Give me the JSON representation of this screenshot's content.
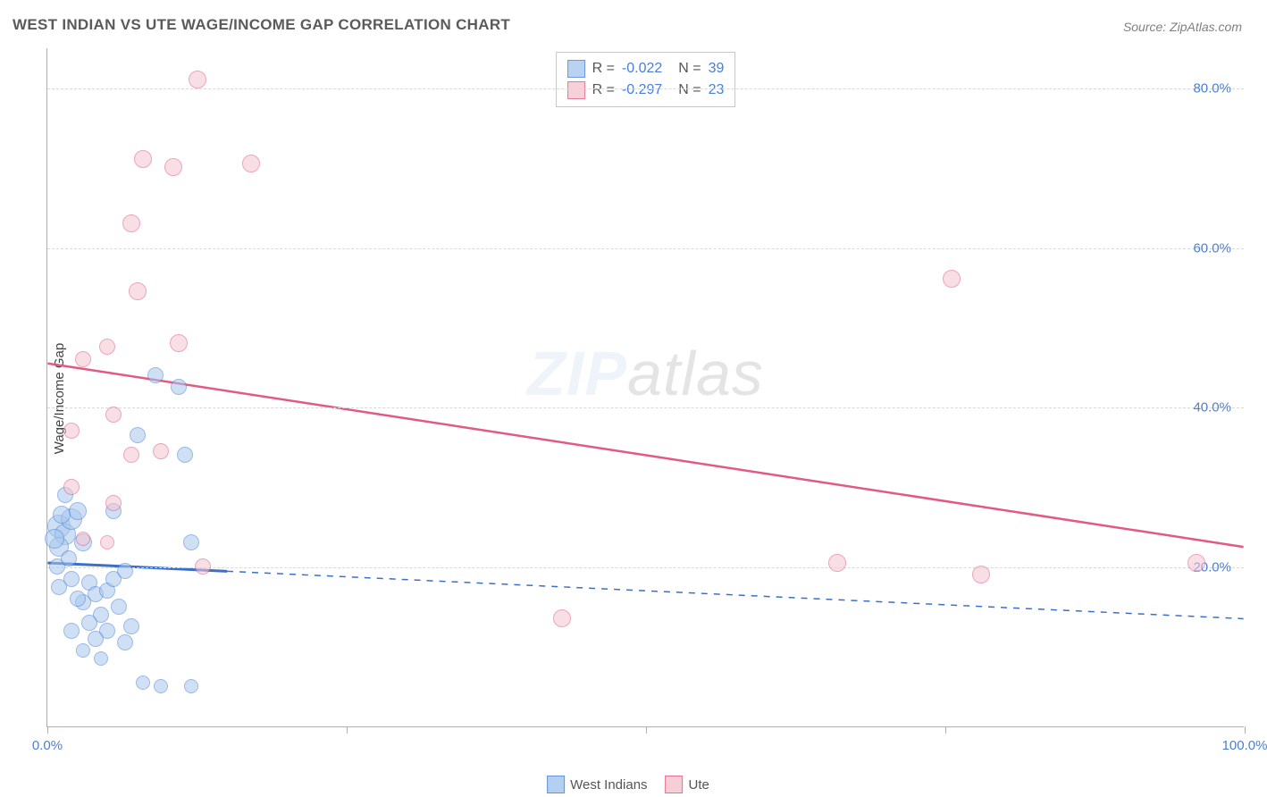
{
  "title": "WEST INDIAN VS UTE WAGE/INCOME GAP CORRELATION CHART",
  "source": "Source: ZipAtlas.com",
  "ylabel": "Wage/Income Gap",
  "watermark_a": "ZIP",
  "watermark_b": "atlas",
  "chart": {
    "type": "scatter",
    "xlim": [
      0,
      100
    ],
    "ylim": [
      0,
      85
    ],
    "yticks": [
      20,
      40,
      60,
      80
    ],
    "ytick_labels": [
      "20.0%",
      "40.0%",
      "60.0%",
      "80.0%"
    ],
    "xticks": [
      0,
      25,
      50,
      75,
      100
    ],
    "x_first_label": "0.0%",
    "x_last_label": "100.0%",
    "grid_color": "#d8d8d8",
    "background_color": "#ffffff",
    "series": [
      {
        "name": "West Indians",
        "fill": "#a8c8ee",
        "stroke": "#4a7fd6",
        "fill_opacity": 0.55,
        "line_color": "#3d6fc9",
        "line_width": 3,
        "trend": {
          "x1": 0,
          "y1": 20.5,
          "x2": 100,
          "y2": 13.5,
          "solid_until_x": 15
        },
        "R": "-0.022",
        "N": "39",
        "points": [
          {
            "x": 1.0,
            "y": 25.0,
            "r": 13
          },
          {
            "x": 1.5,
            "y": 24.0,
            "r": 12
          },
          {
            "x": 2.0,
            "y": 26.0,
            "r": 12
          },
          {
            "x": 1.0,
            "y": 22.5,
            "r": 11
          },
          {
            "x": 2.5,
            "y": 27.0,
            "r": 10
          },
          {
            "x": 3.0,
            "y": 23.0,
            "r": 10
          },
          {
            "x": 1.5,
            "y": 29.0,
            "r": 9
          },
          {
            "x": 0.8,
            "y": 20.0,
            "r": 9
          },
          {
            "x": 2.0,
            "y": 18.5,
            "r": 9
          },
          {
            "x": 3.5,
            "y": 18.0,
            "r": 9
          },
          {
            "x": 4.0,
            "y": 16.5,
            "r": 9
          },
          {
            "x": 5.0,
            "y": 17.0,
            "r": 9
          },
          {
            "x": 3.0,
            "y": 15.5,
            "r": 9
          },
          {
            "x": 4.5,
            "y": 14.0,
            "r": 9
          },
          {
            "x": 5.5,
            "y": 18.5,
            "r": 9
          },
          {
            "x": 6.0,
            "y": 15.0,
            "r": 9
          },
          {
            "x": 3.5,
            "y": 13.0,
            "r": 9
          },
          {
            "x": 5.0,
            "y": 12.0,
            "r": 9
          },
          {
            "x": 6.5,
            "y": 10.5,
            "r": 9
          },
          {
            "x": 4.0,
            "y": 11.0,
            "r": 9
          },
          {
            "x": 7.0,
            "y": 12.5,
            "r": 9
          },
          {
            "x": 2.5,
            "y": 16.0,
            "r": 9
          },
          {
            "x": 5.5,
            "y": 27.0,
            "r": 9
          },
          {
            "x": 7.5,
            "y": 36.5,
            "r": 9
          },
          {
            "x": 9.0,
            "y": 44.0,
            "r": 9
          },
          {
            "x": 11.0,
            "y": 42.5,
            "r": 9
          },
          {
            "x": 12.0,
            "y": 23.0,
            "r": 9
          },
          {
            "x": 11.5,
            "y": 34.0,
            "r": 9
          },
          {
            "x": 2.0,
            "y": 12.0,
            "r": 9
          },
          {
            "x": 6.5,
            "y": 19.5,
            "r": 9
          },
          {
            "x": 8.0,
            "y": 5.5,
            "r": 8
          },
          {
            "x": 9.5,
            "y": 5.0,
            "r": 8
          },
          {
            "x": 12.0,
            "y": 5.0,
            "r": 8
          },
          {
            "x": 3.0,
            "y": 9.5,
            "r": 8
          },
          {
            "x": 4.5,
            "y": 8.5,
            "r": 8
          },
          {
            "x": 1.0,
            "y": 17.5,
            "r": 9
          },
          {
            "x": 1.8,
            "y": 21.0,
            "r": 9
          },
          {
            "x": 0.6,
            "y": 23.5,
            "r": 11
          },
          {
            "x": 1.2,
            "y": 26.5,
            "r": 10
          }
        ]
      },
      {
        "name": "Ute",
        "fill": "#f4c6d2",
        "stroke": "#e15a84",
        "fill_opacity": 0.55,
        "line_color": "#e15a84",
        "line_width": 2.5,
        "trend": {
          "x1": 0,
          "y1": 45.5,
          "x2": 100,
          "y2": 22.5,
          "solid_until_x": 100
        },
        "R": "-0.297",
        "N": "23",
        "points": [
          {
            "x": 12.5,
            "y": 81.0,
            "r": 10
          },
          {
            "x": 8.0,
            "y": 71.0,
            "r": 10
          },
          {
            "x": 10.5,
            "y": 70.0,
            "r": 10
          },
          {
            "x": 17.0,
            "y": 70.5,
            "r": 10
          },
          {
            "x": 7.0,
            "y": 63.0,
            "r": 10
          },
          {
            "x": 7.5,
            "y": 54.5,
            "r": 10
          },
          {
            "x": 11.0,
            "y": 48.0,
            "r": 10
          },
          {
            "x": 5.0,
            "y": 47.5,
            "r": 9
          },
          {
            "x": 3.0,
            "y": 46.0,
            "r": 9
          },
          {
            "x": 5.5,
            "y": 39.0,
            "r": 9
          },
          {
            "x": 2.0,
            "y": 37.0,
            "r": 9
          },
          {
            "x": 7.0,
            "y": 34.0,
            "r": 9
          },
          {
            "x": 9.5,
            "y": 34.5,
            "r": 9
          },
          {
            "x": 2.0,
            "y": 30.0,
            "r": 9
          },
          {
            "x": 5.5,
            "y": 28.0,
            "r": 9
          },
          {
            "x": 5.0,
            "y": 23.0,
            "r": 8
          },
          {
            "x": 13.0,
            "y": 20.0,
            "r": 9
          },
          {
            "x": 3.0,
            "y": 23.5,
            "r": 8
          },
          {
            "x": 43.0,
            "y": 13.5,
            "r": 10
          },
          {
            "x": 66.0,
            "y": 20.5,
            "r": 10
          },
          {
            "x": 75.5,
            "y": 56.0,
            "r": 10
          },
          {
            "x": 78.0,
            "y": 19.0,
            "r": 10
          },
          {
            "x": 96.0,
            "y": 20.5,
            "r": 10
          }
        ]
      }
    ]
  },
  "bottom_legend": [
    {
      "label": "West Indians",
      "fill": "#a8c8ee",
      "stroke": "#4a7fd6"
    },
    {
      "label": "Ute",
      "fill": "#f4c6d2",
      "stroke": "#e15a84"
    }
  ]
}
